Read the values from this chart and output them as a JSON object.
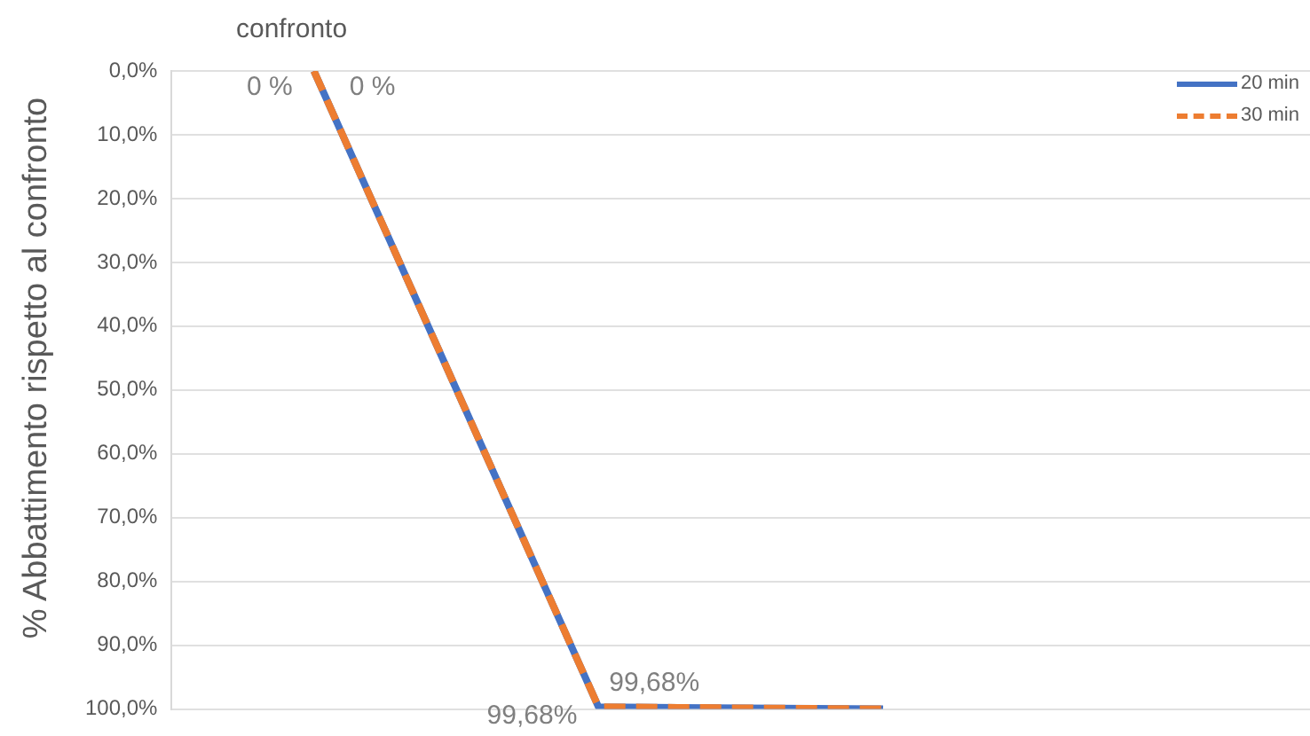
{
  "chart_data": {
    "type": "line",
    "title": "confronto",
    "ylabel": "% Abbattimento rispetto al confronto",
    "categories": [
      null,
      null,
      null,
      null
    ],
    "series": [
      {
        "name": "20 min",
        "color": "#4472c4",
        "line_style": "solid",
        "values": [
          0,
          99.68,
          100,
          null
        ],
        "value_labels": [
          "0 %",
          "99,68%",
          null,
          null
        ]
      },
      {
        "name": "30 min",
        "color": "#ed7d31",
        "line_style": "dashed",
        "values": [
          0,
          99.68,
          100,
          null
        ],
        "value_labels": [
          "0 %",
          "99,68%",
          null,
          null
        ]
      }
    ],
    "ylim": [
      100,
      0
    ],
    "yticks": [
      {
        "value": 0,
        "label": "0,0%"
      },
      {
        "value": 10,
        "label": "10,0%"
      },
      {
        "value": 20,
        "label": "20,0%"
      },
      {
        "value": 30,
        "label": "30,0%"
      },
      {
        "value": 40,
        "label": "40,0%"
      },
      {
        "value": 50,
        "label": "50,0%"
      },
      {
        "value": 60,
        "label": "60,0%"
      },
      {
        "value": 70,
        "label": "70,0%"
      },
      {
        "value": 80,
        "label": "80,0%"
      },
      {
        "value": 90,
        "label": "90,0%"
      },
      {
        "value": 100,
        "label": "100,0%"
      }
    ],
    "grid": "y",
    "legend": "top right",
    "marker": "none",
    "tick_labels": "y"
  }
}
